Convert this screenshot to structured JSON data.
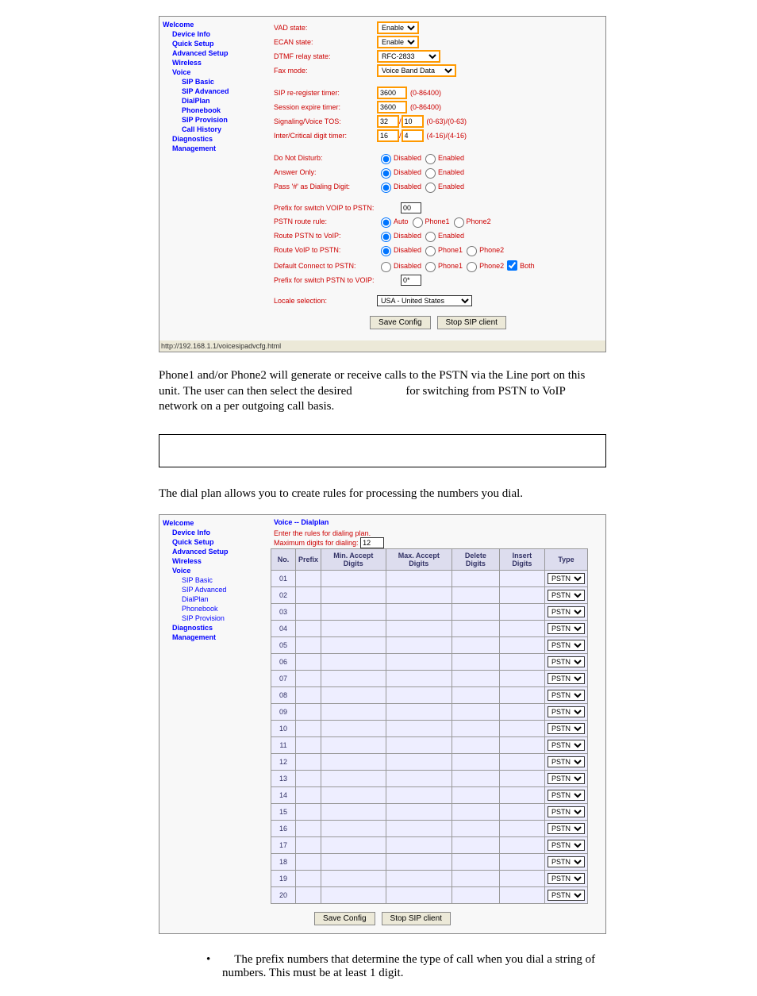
{
  "nav": {
    "welcome": "Welcome",
    "device": "Device Info",
    "quick": "Quick Setup",
    "advanced": "Advanced Setup",
    "wireless": "Wireless",
    "voice": "Voice",
    "sipbasic": "SIP Basic",
    "sipadv": "SIP Advanced",
    "dialplan": "DialPlan",
    "phonebook": "Phonebook",
    "sipprov": "SIP Provision",
    "callhist": "Call History",
    "diag": "Diagnostics",
    "mgmt": "Management"
  },
  "cfg": {
    "vad": {
      "label": "VAD state:",
      "value": "Enable"
    },
    "ecan": {
      "label": "ECAN state:",
      "value": "Enable"
    },
    "dtmf": {
      "label": "DTMF relay state:",
      "value": "RFC-2833"
    },
    "fax": {
      "label": "Fax mode:",
      "value": "Voice Band Data"
    },
    "rereg": {
      "label": "SIP re-register timer:",
      "value": "3600",
      "range": "(0-86400)"
    },
    "sess": {
      "label": "Session expire timer:",
      "value": "3600",
      "range": "(0-86400)"
    },
    "tos": {
      "label": "Signaling/Voice TOS:",
      "v1": "32",
      "v2": "10",
      "range": "(0-63)/(0-63)"
    },
    "digit": {
      "label": "Inter/Critical digit timer:",
      "v1": "16",
      "v2": "4",
      "range": "(4-16)/(4-16)"
    },
    "dnd": {
      "label": "Do Not Disturb:",
      "opt1": "Disabled",
      "opt2": "Enabled"
    },
    "ans": {
      "label": "Answer Only:",
      "opt1": "Disabled",
      "opt2": "Enabled"
    },
    "pass": {
      "label": "Pass '#' as Dialing Digit:",
      "opt1": "Disabled",
      "opt2": "Enabled"
    },
    "pvp": {
      "label": "Prefix for switch VOIP to PSTN:",
      "value": "00"
    },
    "pstnrule": {
      "label": "PSTN route rule:",
      "opt1": "Auto",
      "opt2": "Phone1",
      "opt3": "Phone2"
    },
    "rpv": {
      "label": "Route PSTN to VoIP:",
      "opt1": "Disabled",
      "opt2": "Enabled"
    },
    "rvp": {
      "label": "Route VoIP to PSTN:",
      "opt1": "Disabled",
      "opt2": "Phone1",
      "opt3": "Phone2"
    },
    "defc": {
      "label": "Default Connect to PSTN:",
      "opt1": "Disabled",
      "opt2": "Phone1",
      "opt3": "Phone2",
      "opt4": "Both"
    },
    "ppv": {
      "label": "Prefix for switch PSTN to VOIP:",
      "value": "0*"
    },
    "loc": {
      "label": "Locale selection:",
      "value": "USA - United States"
    },
    "save": "Save Config",
    "stop": "Stop SIP client"
  },
  "status": "http://192.168.1.1/voicesipadvcfg.html",
  "para1_a": "Phone1 and/or Phone2 will generate or receive calls to the PSTN via the Line port on this unit.  The user can then select the desired ",
  "para1_b": " for switching from PSTN to VoIP network on a per outgoing call basis.",
  "para2": "The dial plan allows you to create rules for processing the numbers you dial.",
  "dp": {
    "title": "Voice -- Dialplan",
    "sub": "Enter the rules for dialing plan.",
    "maxlbl": "Maximum digits for dialing:",
    "max": "12",
    "cols": {
      "no": "No.",
      "prefix": "Prefix",
      "min": "Min. Accept Digits",
      "max": "Max. Accept Digits",
      "del": "Delete Digits",
      "ins": "Insert Digits",
      "type": "Type"
    },
    "type": "PSTN",
    "rows": 20,
    "save": "Save Config",
    "stop": "Stop SIP client"
  },
  "bullet": "The prefix numbers that determine the type of call when you dial a string of numbers. This must be at least 1 digit."
}
